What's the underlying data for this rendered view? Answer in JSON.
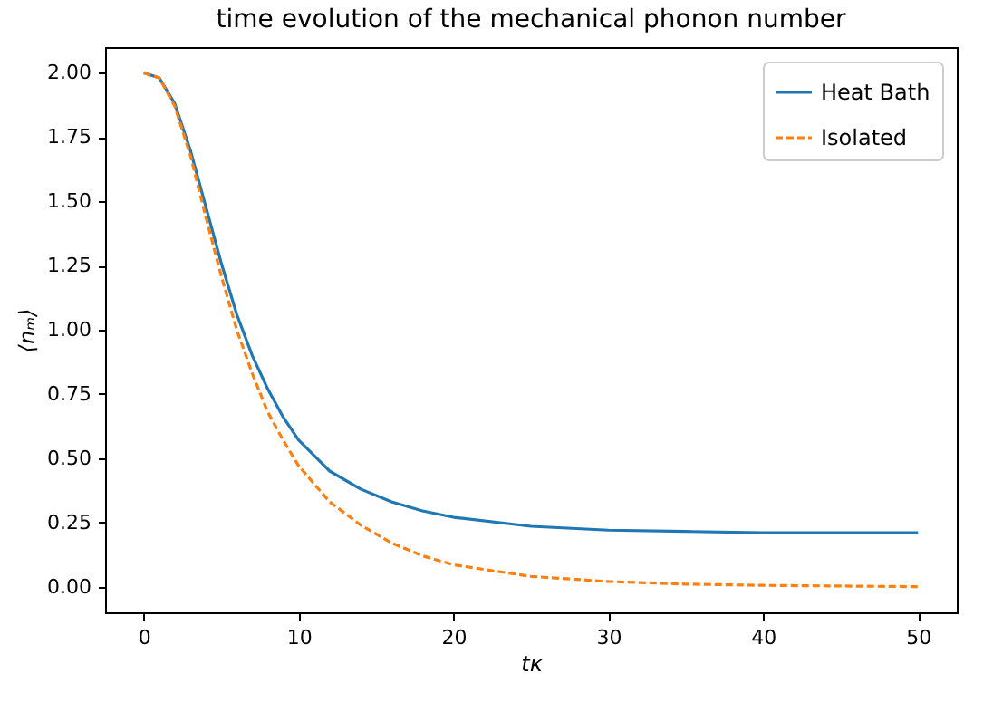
{
  "chart_data": {
    "type": "line",
    "title": "time evolution of the mechanical phonon number",
    "xlabel": "tκ",
    "ylabel": "⟨nₘ⟩",
    "x": [
      0,
      1,
      2,
      3,
      4,
      5,
      6,
      7,
      8,
      9,
      10,
      12,
      14,
      16,
      18,
      20,
      25,
      30,
      35,
      40,
      50
    ],
    "series": [
      {
        "name": "Heat Bath",
        "color": "#1f77b4",
        "line_style": "solid",
        "values": [
          2.0,
          1.98,
          1.88,
          1.7,
          1.48,
          1.26,
          1.06,
          0.9,
          0.77,
          0.66,
          0.57,
          0.45,
          0.38,
          0.33,
          0.295,
          0.27,
          0.235,
          0.22,
          0.215,
          0.21,
          0.21
        ]
      },
      {
        "name": "Isolated",
        "color": "#ff7f0e",
        "line_style": "dashed",
        "values": [
          2.0,
          1.98,
          1.87,
          1.68,
          1.44,
          1.21,
          1.0,
          0.83,
          0.68,
          0.57,
          0.47,
          0.33,
          0.24,
          0.17,
          0.12,
          0.085,
          0.04,
          0.02,
          0.01,
          0.005,
          0.0
        ]
      }
    ],
    "xlim": [
      -2.5,
      52.5
    ],
    "xticks": [
      0,
      10,
      20,
      30,
      40,
      50
    ],
    "ylim": [
      -0.1,
      2.1
    ],
    "yticks": [
      {
        "value": 0,
        "label": "0.00"
      },
      0.25,
      {
        "value": 0.5,
        "label": "0.50"
      },
      0.75,
      {
        "value": 1,
        "label": "1.00"
      },
      1.25,
      {
        "value": 1.5,
        "label": "1.50"
      },
      1.75,
      {
        "value": 2,
        "label": "2.00"
      }
    ],
    "grid": false,
    "legend": "top right",
    "marker": "none"
  }
}
